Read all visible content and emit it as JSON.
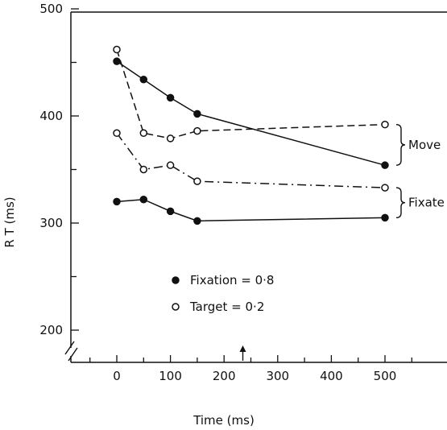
{
  "chart_data": {
    "type": "line",
    "xlabel": "Time (ms)",
    "ylabel": "R T (ms)",
    "x_ticks": [
      0,
      100,
      200,
      300,
      400,
      500
    ],
    "y_ticks": [
      200,
      300,
      400,
      500
    ],
    "xlim": [
      -90,
      540
    ],
    "ylim": [
      150,
      500
    ],
    "y_axis_break": true,
    "arrow_marker_x": 235,
    "series": [
      {
        "group": "Move",
        "marker": "filled",
        "style": "solid",
        "x": [
          0,
          50,
          100,
          150,
          500
        ],
        "y": [
          451,
          434,
          417,
          402,
          354
        ]
      },
      {
        "group": "Move",
        "marker": "open",
        "style": "dashed",
        "x": [
          0,
          50,
          100,
          150,
          500
        ],
        "y": [
          462,
          384,
          379,
          386,
          392
        ]
      },
      {
        "group": "Fixate",
        "marker": "open",
        "style": "dashdot",
        "x": [
          0,
          50,
          100,
          150,
          500
        ],
        "y": [
          384,
          350,
          354,
          339,
          333
        ]
      },
      {
        "group": "Fixate",
        "marker": "filled",
        "style": "solid",
        "x": [
          0,
          50,
          100,
          150,
          500
        ],
        "y": [
          320,
          322,
          311,
          302,
          305
        ]
      }
    ],
    "group_labels": [
      {
        "text": "Move",
        "y_range": [
          354,
          392
        ]
      },
      {
        "text": "Fixate",
        "y_range": [
          305,
          333
        ]
      }
    ],
    "legend": {
      "placement": "lower-left",
      "entries": [
        {
          "marker": "filled",
          "label": "Fixation = 0·8"
        },
        {
          "marker": "open",
          "label": "Target = 0·2"
        }
      ]
    }
  }
}
